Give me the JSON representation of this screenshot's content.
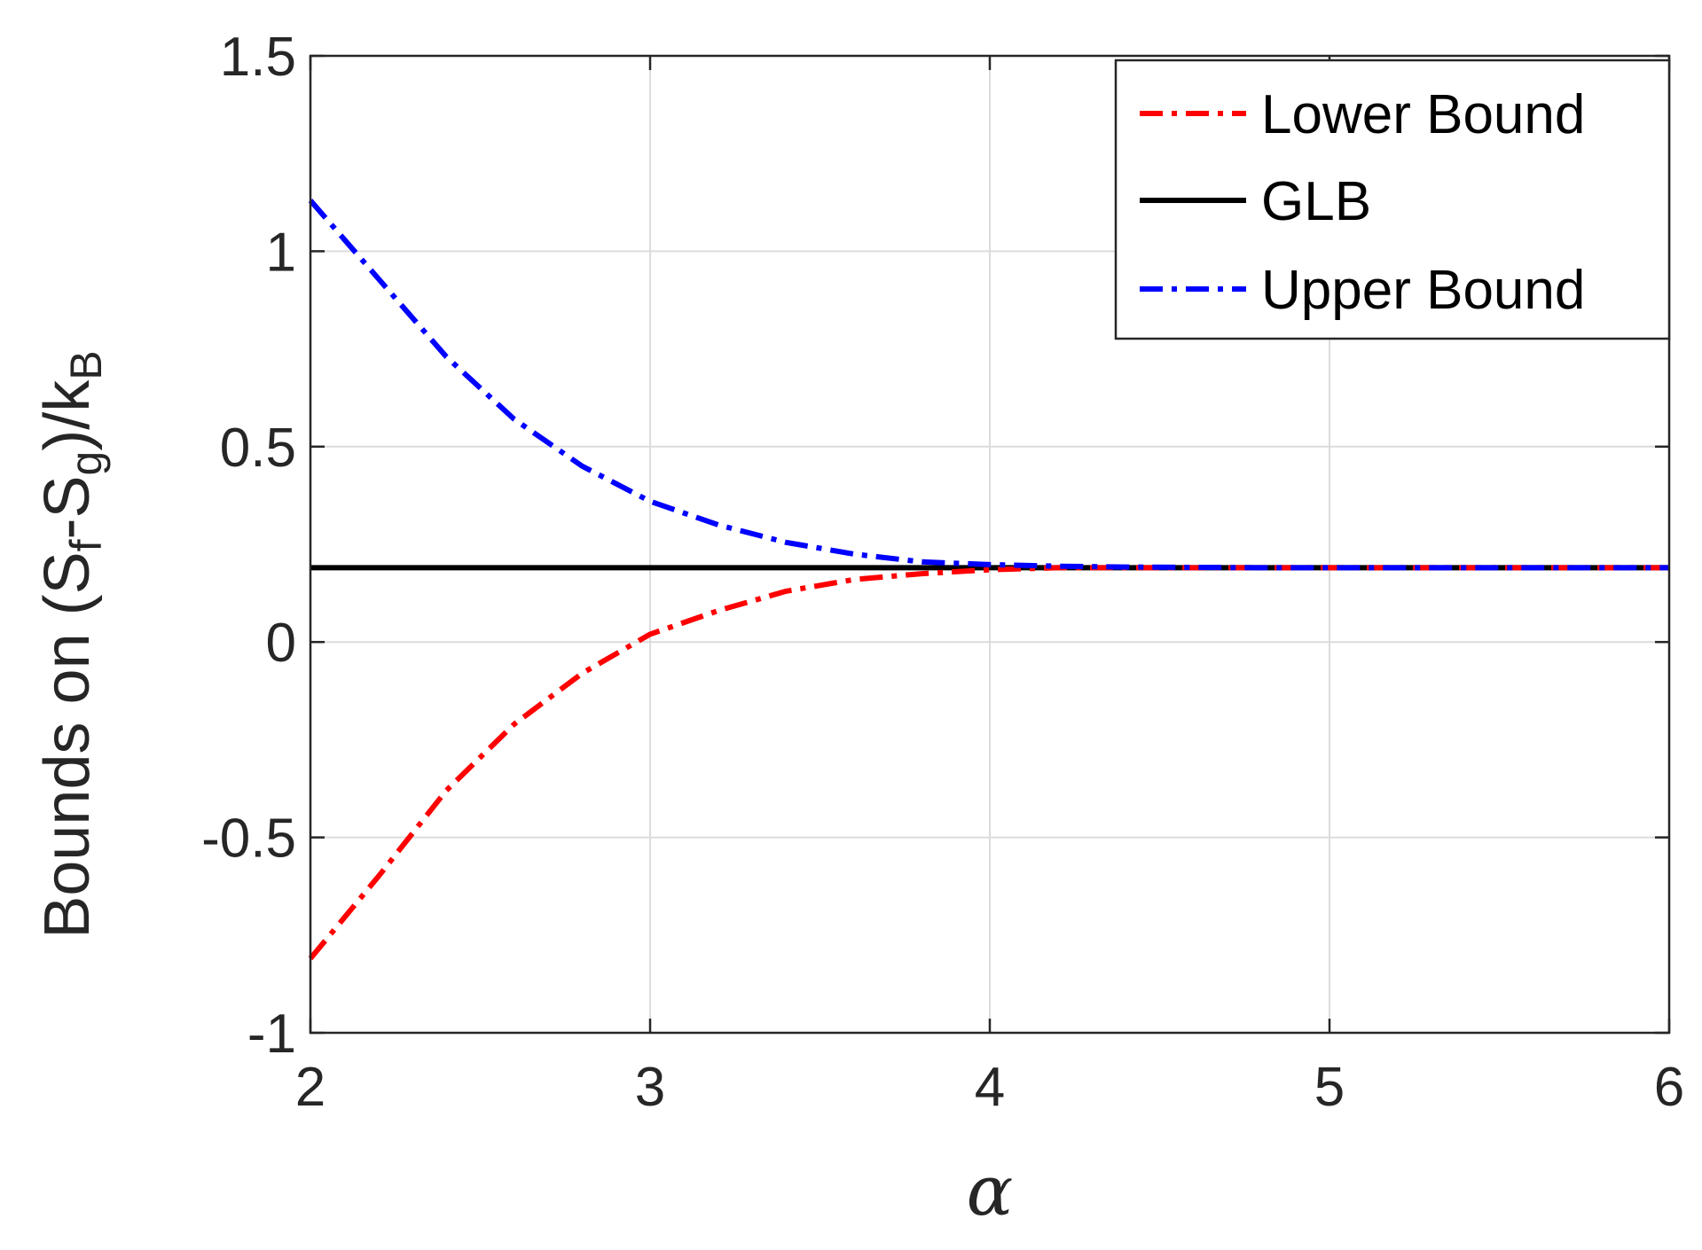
{
  "chart_data": {
    "type": "line",
    "xlabel": "α",
    "ylabel": {
      "prefix": "Bounds on (S",
      "sub1": "f",
      "mid": "-S",
      "sub2": "g",
      "suffix": ")/k",
      "sub3": "B"
    },
    "xlim": [
      2,
      6
    ],
    "ylim": [
      -1,
      1.5
    ],
    "xticks": [
      2,
      3,
      4,
      5,
      6
    ],
    "xtick_labels": [
      "2",
      "3",
      "4",
      "5",
      "6"
    ],
    "yticks": [
      -1,
      -0.5,
      0,
      0.5,
      1,
      1.5
    ],
    "ytick_labels": [
      "-1",
      "-0.5",
      "0",
      "0.5",
      "1",
      "1.5"
    ],
    "grid": true,
    "legend_position": "top-right",
    "series": [
      {
        "name": "Lower Bound",
        "color": "#ff0000",
        "style": "dash-dot",
        "x": [
          2.0,
          2.2,
          2.4,
          2.6,
          2.8,
          3.0,
          3.2,
          3.4,
          3.6,
          3.8,
          4.0,
          4.2,
          4.4,
          4.6,
          4.8,
          5.0,
          5.5,
          6.0
        ],
        "y": [
          -0.81,
          -0.6,
          -0.38,
          -0.21,
          -0.08,
          0.02,
          0.08,
          0.13,
          0.16,
          0.175,
          0.185,
          0.19,
          0.19,
          0.19,
          0.19,
          0.19,
          0.19,
          0.19
        ]
      },
      {
        "name": "GLB",
        "color": "#000000",
        "style": "solid",
        "x": [
          2.0,
          6.0
        ],
        "y": [
          0.19,
          0.19
        ]
      },
      {
        "name": "Upper Bound",
        "color": "#0000ff",
        "style": "dash-dot",
        "x": [
          2.0,
          2.2,
          2.4,
          2.6,
          2.8,
          3.0,
          3.2,
          3.4,
          3.6,
          3.8,
          4.0,
          4.2,
          4.4,
          4.6,
          4.8,
          5.0,
          5.5,
          6.0
        ],
        "y": [
          1.13,
          0.93,
          0.73,
          0.57,
          0.45,
          0.36,
          0.3,
          0.255,
          0.225,
          0.205,
          0.198,
          0.194,
          0.192,
          0.191,
          0.19,
          0.19,
          0.19,
          0.19
        ]
      }
    ]
  }
}
